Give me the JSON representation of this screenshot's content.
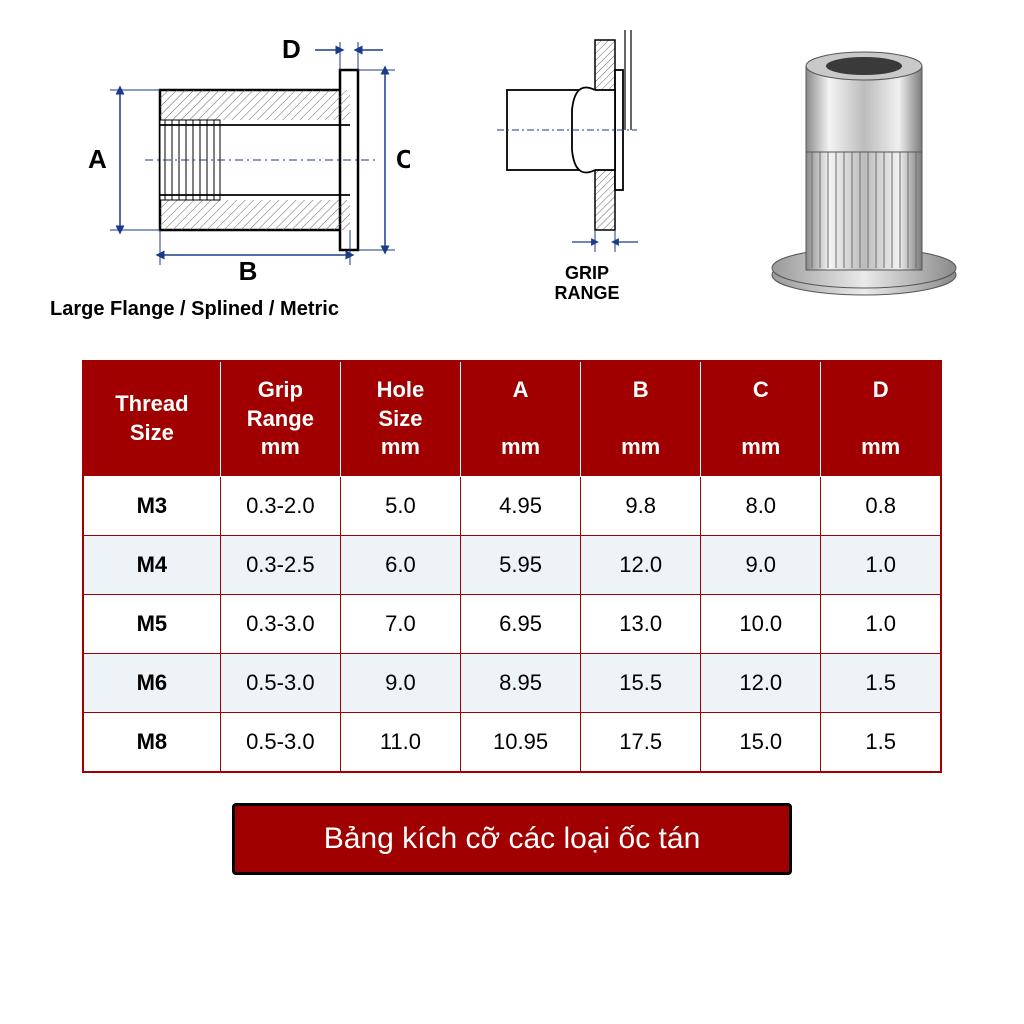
{
  "diagram": {
    "caption": "Large Flange / Splined / Metric",
    "labels": {
      "A": "A",
      "B": "B",
      "C": "C",
      "D": "D",
      "grip_range": "GRIP\nRANGE"
    },
    "colors": {
      "dim_line": "#1a3a8a",
      "outline": "#000000",
      "hatch": "#555555"
    }
  },
  "table": {
    "header_bg": "#a00000",
    "header_fg": "#ffffff",
    "cell_bg": "#ffffff",
    "alt_bg": "#eef3f7",
    "border": "#a00000",
    "columns": [
      {
        "label": "Thread\nSize",
        "width": "16%"
      },
      {
        "label": "Grip\nRange\nmm",
        "width": "14%"
      },
      {
        "label": "Hole\nSize\nmm",
        "width": "14%"
      },
      {
        "label": "A\n\nmm",
        "width": "14%"
      },
      {
        "label": "B\n\nmm",
        "width": "14%"
      },
      {
        "label": "C\n\nmm",
        "width": "14%"
      },
      {
        "label": "D\n\nmm",
        "width": "14%"
      }
    ],
    "rows": [
      {
        "thread": "M3",
        "cells": [
          "0.3-2.0",
          "5.0",
          "4.95",
          "9.8",
          "8.0",
          "0.8"
        ]
      },
      {
        "thread": "M4",
        "cells": [
          "0.3-2.5",
          "6.0",
          "5.95",
          "12.0",
          "9.0",
          "1.0"
        ]
      },
      {
        "thread": "M5",
        "cells": [
          "0.3-3.0",
          "7.0",
          "6.95",
          "13.0",
          "10.0",
          "1.0"
        ]
      },
      {
        "thread": "M6",
        "cells": [
          "0.5-3.0",
          "9.0",
          "8.95",
          "15.5",
          "12.0",
          "1.5"
        ]
      },
      {
        "thread": "M8",
        "cells": [
          "0.5-3.0",
          "11.0",
          "10.95",
          "17.5",
          "15.0",
          "1.5"
        ]
      }
    ]
  },
  "caption": "Bảng kích cỡ các loại ốc tán"
}
